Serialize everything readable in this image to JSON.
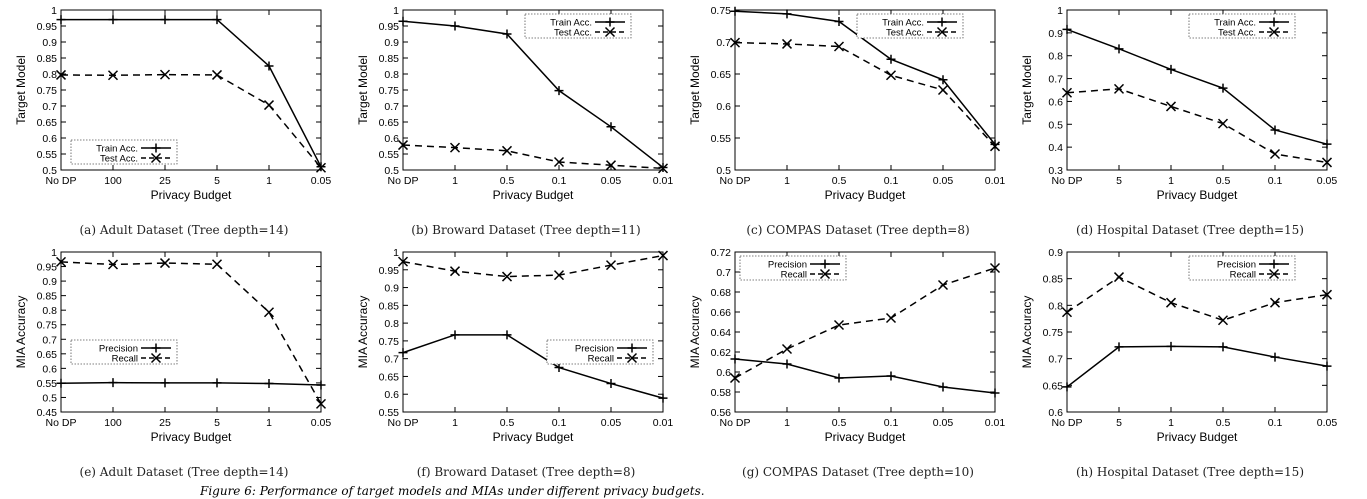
{
  "figure_caption": "Figure 6: Performance of target models and MIAs under different privacy budgets.",
  "chart_data": [
    {
      "type": "line",
      "caption": "(a) Adult Dataset (Tree depth=14)",
      "categories": [
        "No DP",
        "100",
        "25",
        "5",
        "1",
        "0.05"
      ],
      "xlabel": "Privacy Budget",
      "ylabel": "Target Model",
      "ylim": [
        0.5,
        1.0
      ],
      "yticks": [
        "0.5",
        "0.55",
        "0.6",
        "0.65",
        "0.7",
        "0.75",
        "0.8",
        "0.85",
        "0.9",
        "0.95",
        "1"
      ],
      "legend_position": "bottom-left",
      "series": [
        {
          "name": "Train Acc.",
          "style": "solid",
          "marker": "plus",
          "values": [
            0.97,
            0.97,
            0.97,
            0.97,
            0.825,
            0.51
          ]
        },
        {
          "name": "Test Acc.",
          "style": "dashed",
          "marker": "cross",
          "values": [
            0.797,
            0.796,
            0.798,
            0.797,
            0.703,
            0.507
          ]
        }
      ]
    },
    {
      "type": "line",
      "caption": "(b) Broward Dataset (Tree depth=11)",
      "categories": [
        "No DP",
        "1",
        "0.5",
        "0.1",
        "0.05",
        "0.01"
      ],
      "xlabel": "Privacy Budget",
      "ylabel": "Target Model",
      "ylim": [
        0.5,
        1.0
      ],
      "yticks": [
        "0.5",
        "0.55",
        "0.6",
        "0.65",
        "0.7",
        "0.75",
        "0.8",
        "0.85",
        "0.9",
        "0.95",
        "1"
      ],
      "legend_position": "top-right",
      "series": [
        {
          "name": "Train Acc.",
          "style": "solid",
          "marker": "plus",
          "values": [
            0.965,
            0.95,
            0.925,
            0.748,
            0.635,
            0.508
          ]
        },
        {
          "name": "Test Acc.",
          "style": "dashed",
          "marker": "cross",
          "values": [
            0.578,
            0.57,
            0.56,
            0.525,
            0.515,
            0.505
          ]
        }
      ]
    },
    {
      "type": "line",
      "caption": "(c) COMPAS Dataset (Tree depth=8)",
      "categories": [
        "No DP",
        "1",
        "0.5",
        "0.1",
        "0.05",
        "0.01"
      ],
      "xlabel": "Privacy Budget",
      "ylabel": "Target Model",
      "ylim": [
        0.5,
        0.75
      ],
      "yticks": [
        "0.5",
        "0.55",
        "0.6",
        "0.65",
        "0.7",
        "0.75"
      ],
      "legend_position": "top-right",
      "series": [
        {
          "name": "Train Acc.",
          "style": "solid",
          "marker": "plus",
          "values": [
            0.748,
            0.744,
            0.732,
            0.673,
            0.641,
            0.54
          ]
        },
        {
          "name": "Test Acc.",
          "style": "dashed",
          "marker": "cross",
          "values": [
            0.699,
            0.697,
            0.693,
            0.648,
            0.625,
            0.537
          ]
        }
      ]
    },
    {
      "type": "line",
      "caption": "(d) Hospital Dataset (Tree depth=15)",
      "categories": [
        "No DP",
        "5",
        "1",
        "0.5",
        "0.1",
        "0.05"
      ],
      "xlabel": "Privacy Budget",
      "ylabel": "Target Model",
      "ylim": [
        0.3,
        1.0
      ],
      "yticks": [
        "0.3",
        "0.4",
        "0.5",
        "0.6",
        "0.7",
        "0.8",
        "0.9",
        "1"
      ],
      "legend_position": "top-right",
      "series": [
        {
          "name": "Train Acc.",
          "style": "solid",
          "marker": "plus",
          "values": [
            0.915,
            0.83,
            0.74,
            0.658,
            0.475,
            0.413
          ]
        },
        {
          "name": "Test Acc.",
          "style": "dashed",
          "marker": "cross",
          "values": [
            0.638,
            0.655,
            0.578,
            0.503,
            0.37,
            0.333
          ]
        }
      ]
    },
    {
      "type": "line",
      "caption": "(e) Adult Dataset (Tree depth=14)",
      "categories": [
        "No DP",
        "100",
        "25",
        "5",
        "1",
        "0.05"
      ],
      "xlabel": "Privacy Budget",
      "ylabel": "MIA Accuracy",
      "ylim": [
        0.45,
        1.0
      ],
      "yticks": [
        "0.45",
        "0.5",
        "0.55",
        "0.6",
        "0.65",
        "0.7",
        "0.75",
        "0.8",
        "0.85",
        "0.9",
        "0.95",
        "1"
      ],
      "legend_position": "middle-left",
      "series": [
        {
          "name": "Precision",
          "style": "solid",
          "marker": "plus",
          "values": [
            0.549,
            0.551,
            0.55,
            0.55,
            0.548,
            0.543
          ]
        },
        {
          "name": "Recall",
          "style": "dashed",
          "marker": "cross",
          "values": [
            0.966,
            0.957,
            0.962,
            0.958,
            0.793,
            0.478
          ]
        }
      ]
    },
    {
      "type": "line",
      "caption": "(f) Broward Dataset (Tree depth=8)",
      "categories": [
        "No DP",
        "1",
        "0.5",
        "0.1",
        "0.05",
        "0.01"
      ],
      "xlabel": "Privacy Budget",
      "ylabel": "MIA Accuracy",
      "ylim": [
        0.55,
        1.0
      ],
      "yticks": [
        "0.55",
        "0.6",
        "0.65",
        "0.7",
        "0.75",
        "0.8",
        "0.85",
        "0.9",
        "0.95",
        "1"
      ],
      "legend_position": "middle-right",
      "series": [
        {
          "name": "Precision",
          "style": "solid",
          "marker": "plus",
          "values": [
            0.717,
            0.767,
            0.767,
            0.675,
            0.63,
            0.589
          ]
        },
        {
          "name": "Recall",
          "style": "dashed",
          "marker": "cross",
          "values": [
            0.973,
            0.946,
            0.931,
            0.935,
            0.963,
            0.99
          ]
        }
      ]
    },
    {
      "type": "line",
      "caption": "(g) COMPAS Dataset (Tree depth=10)",
      "categories": [
        "No DP",
        "1",
        "0.5",
        "0.1",
        "0.05",
        "0.01"
      ],
      "xlabel": "Privacy Budget",
      "ylabel": "MIA Accuracy",
      "ylim": [
        0.56,
        0.72
      ],
      "yticks": [
        "0.56",
        "0.58",
        "0.6",
        "0.62",
        "0.64",
        "0.66",
        "0.68",
        "0.7",
        "0.72"
      ],
      "legend_position": "top-left",
      "series": [
        {
          "name": "Precision",
          "style": "solid",
          "marker": "plus",
          "values": [
            0.613,
            0.608,
            0.594,
            0.596,
            0.585,
            0.579
          ]
        },
        {
          "name": "Recall",
          "style": "dashed",
          "marker": "cross",
          "values": [
            0.594,
            0.623,
            0.647,
            0.654,
            0.687,
            0.704
          ]
        }
      ]
    },
    {
      "type": "line",
      "caption": "(h) Hospital Dataset (Tree depth=15)",
      "categories": [
        "No DP",
        "5",
        "1",
        "0.5",
        "0.1",
        "0.05"
      ],
      "xlabel": "Privacy Budget",
      "ylabel": "MIA Accuracy",
      "ylim": [
        0.6,
        0.9
      ],
      "yticks": [
        "0.6",
        "0.65",
        "0.7",
        "0.75",
        "0.8",
        "0.85",
        "0.9"
      ],
      "legend_position": "top-right",
      "series": [
        {
          "name": "Precision",
          "style": "solid",
          "marker": "plus",
          "values": [
            0.647,
            0.722,
            0.723,
            0.722,
            0.703,
            0.686
          ]
        },
        {
          "name": "Recall",
          "style": "dashed",
          "marker": "cross",
          "values": [
            0.787,
            0.853,
            0.805,
            0.772,
            0.805,
            0.82
          ]
        }
      ]
    }
  ]
}
